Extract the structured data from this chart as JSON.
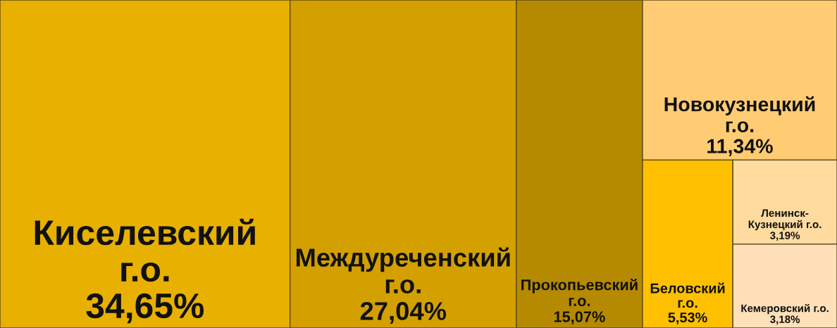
{
  "chart_data": {
    "type": "other",
    "categories": [
      "Киселевский г.о.",
      "Междуреченский г.о.",
      "Прокопьевский г.о.",
      "Новокузнецкий г.о.",
      "Беловский г.о.",
      "Ленинск-Кузнецкий г.о.",
      "Кемеровский г.о."
    ],
    "values": [
      34.65,
      27.04,
      15.07,
      11.34,
      5.53,
      3.19,
      3.18
    ],
    "value_labels": [
      "34,65%",
      "27,04%",
      "15,07%",
      "11,34%",
      "5,53%",
      "3,19%",
      "3,18%"
    ],
    "colors": [
      "#e8b000",
      "#d4a000",
      "#b68a00",
      "#ffcc73",
      "#ffc000",
      "#ffdba0",
      "#ffe0b8"
    ]
  }
}
